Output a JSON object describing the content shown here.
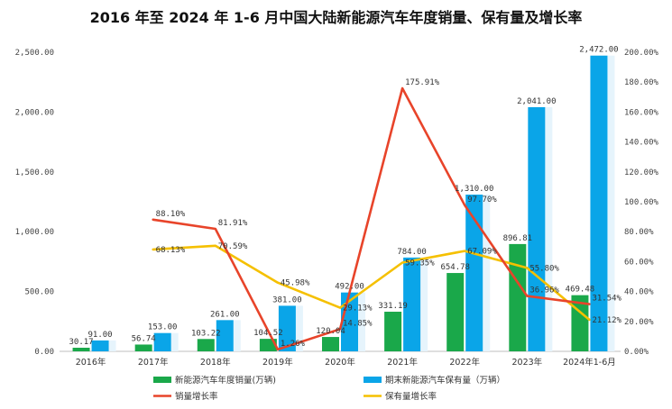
{
  "title": "2016 年至 2024 年 1-6 月中国大陆新能源汽车年度销量、保有量及增长率",
  "colors": {
    "sales_bar": "#1aa84a",
    "stock_bar": "#0aa5e8",
    "sales_growth": "#e8442a",
    "stock_growth": "#f5c000"
  },
  "chart_data": {
    "type": "bar",
    "categories": [
      "2016年",
      "2017年",
      "2018年",
      "2019年",
      "2020年",
      "2021年",
      "2022年",
      "2023年",
      "2024年1-6月"
    ],
    "series": [
      {
        "name": "新能源汽车年度销量(万辆)",
        "type": "bar",
        "axis": "left",
        "values": [
          30.17,
          56.74,
          103.22,
          104.52,
          120.04,
          331.19,
          654.78,
          896.81,
          469.48
        ],
        "labels": [
          "30.17",
          "56.74",
          "103.22",
          "104.52",
          "120.04",
          "331.19",
          "654.78",
          "896.81",
          "469.48"
        ]
      },
      {
        "name": "期末新能源汽车保有量（万辆）",
        "type": "bar",
        "axis": "left",
        "values": [
          91.0,
          153.0,
          261.0,
          381.0,
          492.0,
          784.0,
          1310.0,
          2041.0,
          2472.0
        ],
        "labels": [
          "91.00",
          "153.00",
          "261.00",
          "381.00",
          "492.00",
          "784.00",
          "1,310.00",
          "2,041.00",
          "2,472.00"
        ]
      },
      {
        "name": "销量增长率",
        "type": "line",
        "axis": "right",
        "values": [
          null,
          88.1,
          81.91,
          1.26,
          14.85,
          175.91,
          97.7,
          36.96,
          31.54
        ],
        "labels": [
          "",
          "88.10%",
          "81.91%",
          "1.26%",
          "14.85%",
          "175.91%",
          "97.70%",
          "36.96%",
          "31.54%"
        ]
      },
      {
        "name": "保有量增长率",
        "type": "line",
        "axis": "right",
        "values": [
          null,
          68.13,
          70.59,
          45.98,
          29.13,
          59.35,
          67.09,
          55.8,
          21.12
        ],
        "labels": [
          "",
          "68.13%",
          "70.59%",
          "45.98%",
          "29.13%",
          "59.35%",
          "67.09%",
          "55.80%",
          "21.12%"
        ]
      }
    ],
    "ylim_left": [
      0,
      2500
    ],
    "yticks_left": [
      "0.00",
      "500.00",
      "1,000.00",
      "1,500.00",
      "2,000.00",
      "2,500.00"
    ],
    "ylim_right": [
      0,
      200
    ],
    "yticks_right": [
      "0.00%",
      "20.00%",
      "40.00%",
      "60.00%",
      "80.00%",
      "100.00%",
      "120.00%",
      "140.00%",
      "160.00%",
      "180.00%",
      "200.00%"
    ],
    "grid": false,
    "legend_position": "bottom"
  }
}
